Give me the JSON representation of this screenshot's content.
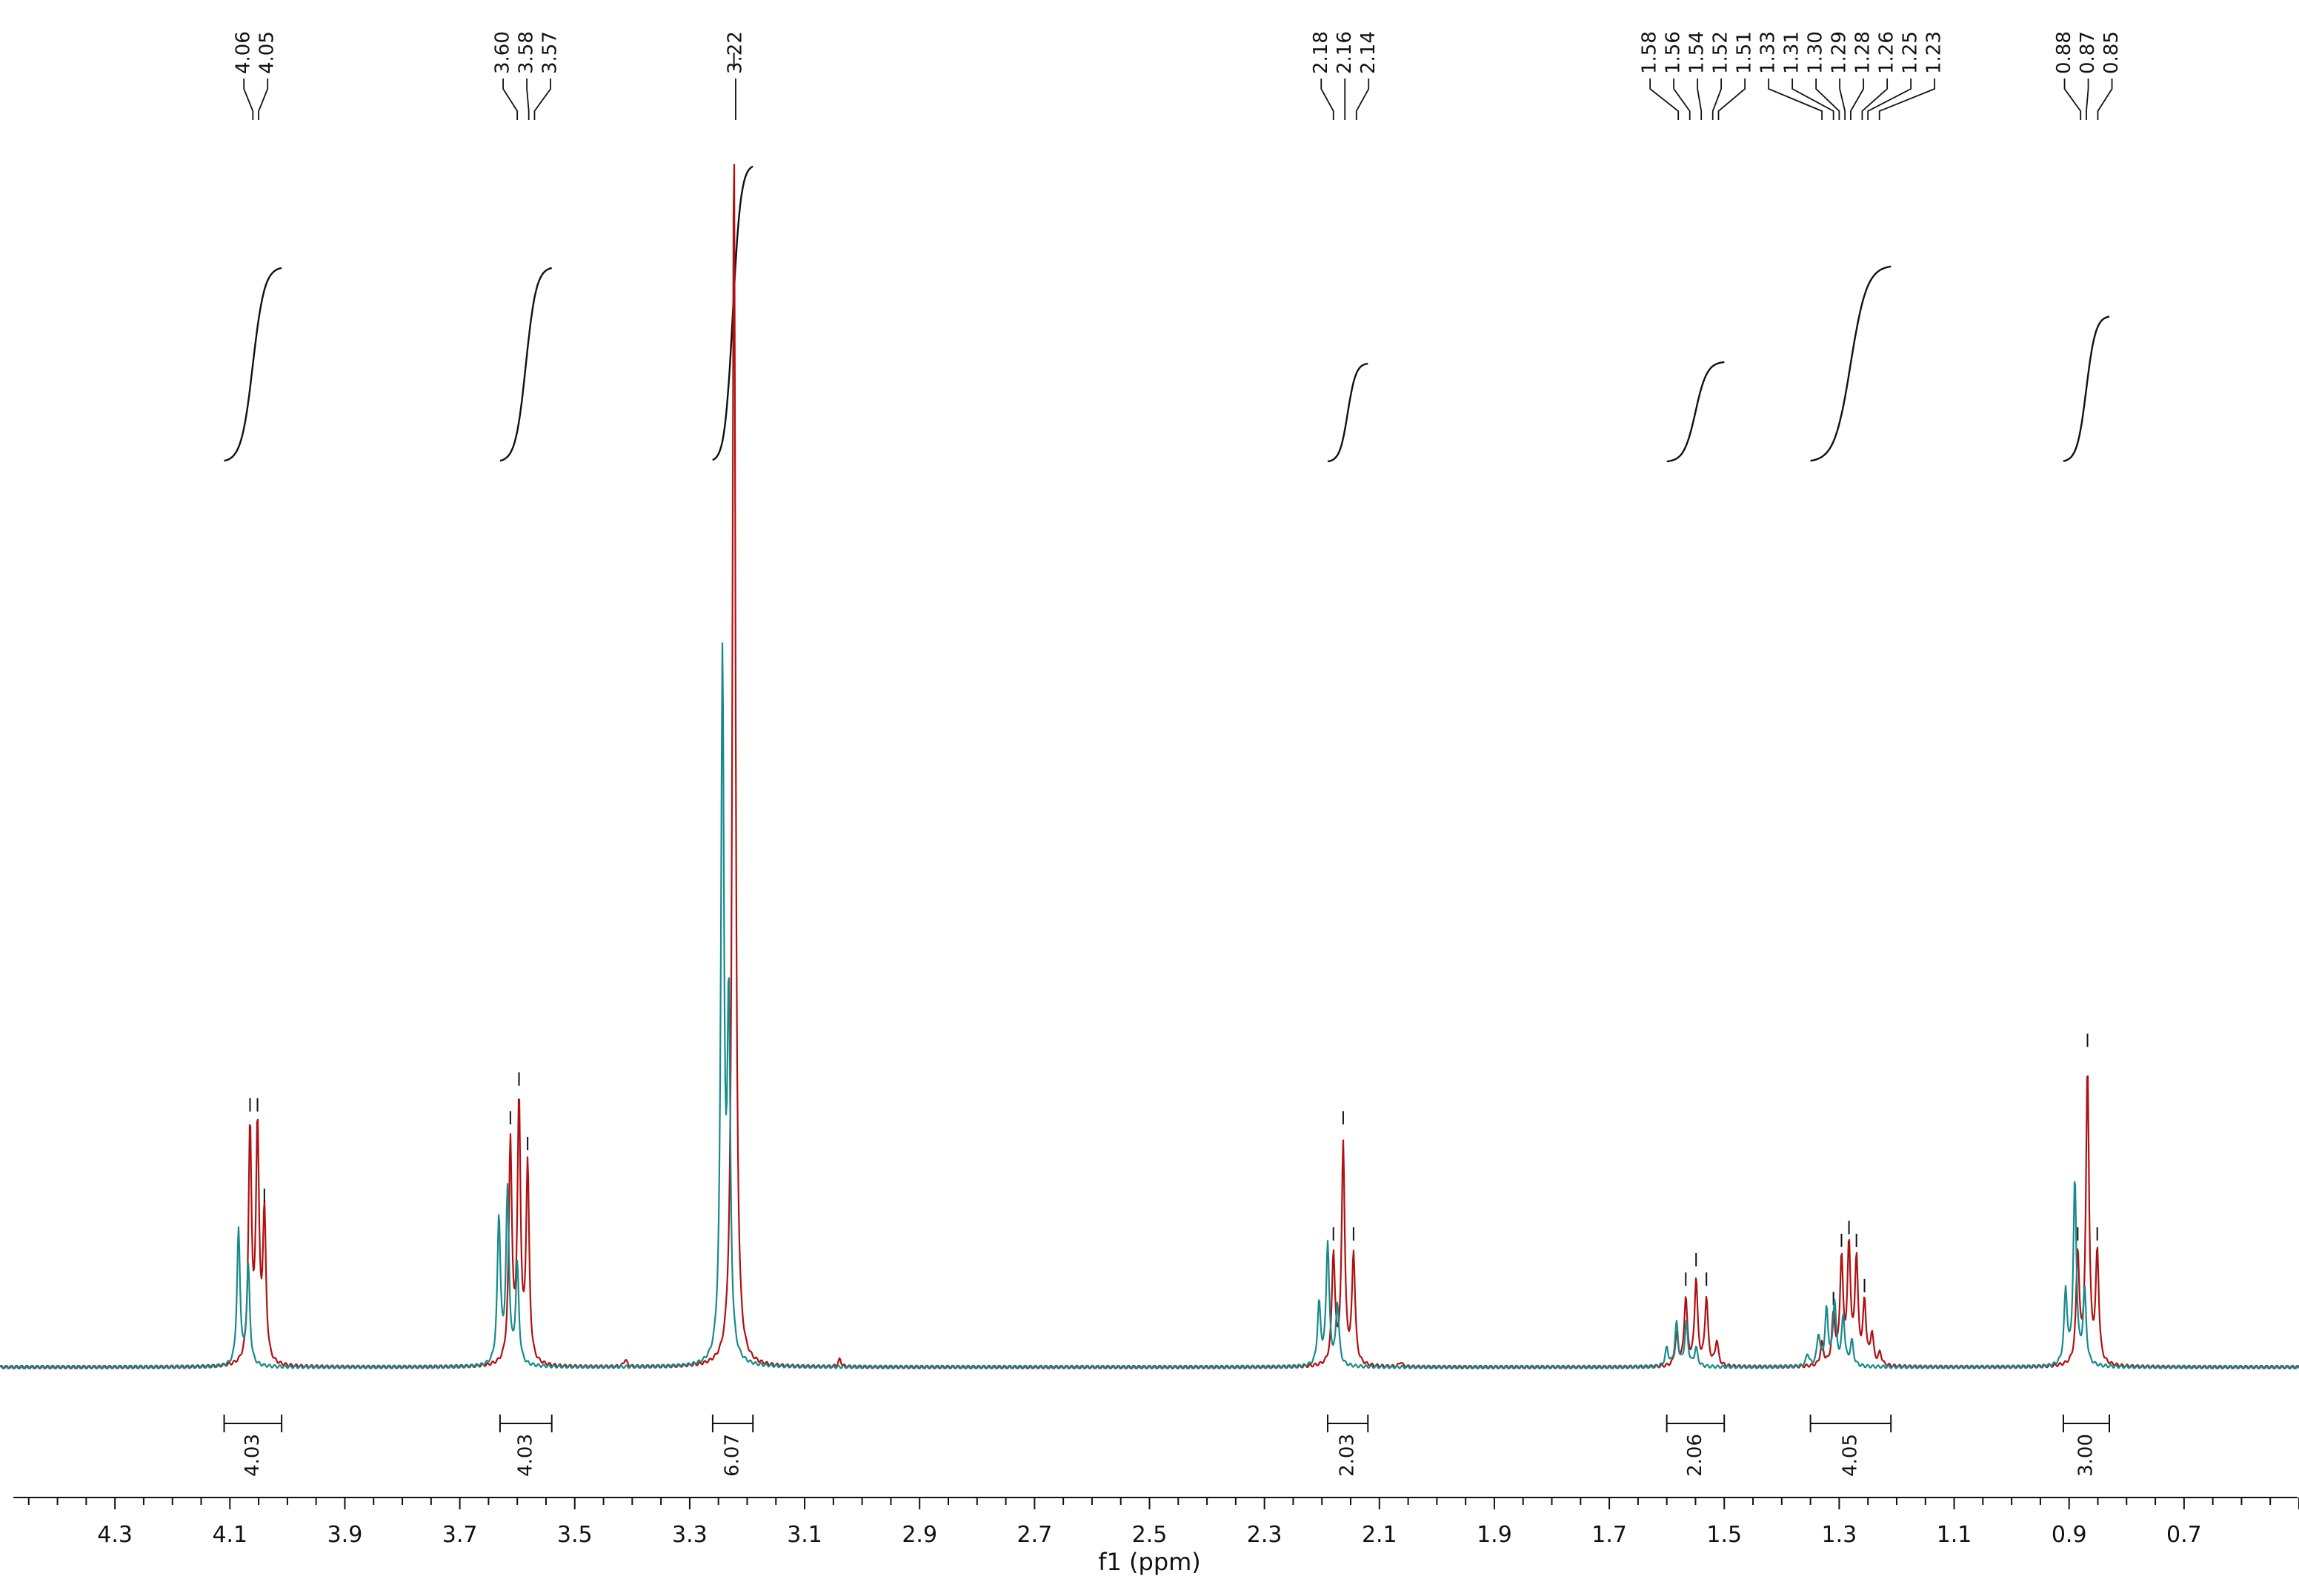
{
  "chart_data": {
    "type": "line",
    "xlabel": "f1 (ppm)",
    "xlim": [
      4.5,
      0.5
    ],
    "x_ticks": [
      "4.3",
      "4.1",
      "3.9",
      "3.7",
      "3.5",
      "3.3",
      "3.1",
      "2.9",
      "2.7",
      "2.5",
      "2.3",
      "2.1",
      "1.9",
      "1.7",
      "1.5",
      "1.3",
      "1.1",
      "0.9",
      "0.7"
    ],
    "peak_labels": [
      {
        "group": "4.06-4.05",
        "labels": [
          "4.06",
          "4.05"
        ]
      },
      {
        "group": "3.60-3.57",
        "labels": [
          "3.60",
          "3.58",
          "3.57"
        ]
      },
      {
        "group": "3.22",
        "labels": [
          "3.22"
        ]
      },
      {
        "group": "2.18-2.14",
        "labels": [
          "2.18",
          "2.16",
          "2.14"
        ]
      },
      {
        "group": "1.58-1.23",
        "labels": [
          "1.58",
          "1.56",
          "1.54",
          "1.52",
          "1.51",
          "1.33",
          "1.31",
          "1.30",
          "1.29",
          "1.28",
          "1.26",
          "1.25",
          "1.23"
        ]
      },
      {
        "group": "0.88-0.85",
        "labels": [
          "0.88",
          "0.87",
          "0.85"
        ]
      }
    ],
    "integrals": [
      {
        "from": 4.11,
        "to": 4.01,
        "value": "4.03"
      },
      {
        "from": 3.63,
        "to": 3.54,
        "value": "4.03"
      },
      {
        "from": 3.26,
        "to": 3.19,
        "value": "6.07"
      },
      {
        "from": 2.19,
        "to": 2.12,
        "value": "2.03"
      },
      {
        "from": 1.6,
        "to": 1.5,
        "value": "2.06"
      },
      {
        "from": 1.35,
        "to": 1.21,
        "value": "4.05"
      },
      {
        "from": 0.91,
        "to": 0.83,
        "value": "3.00"
      }
    ],
    "series": [
      {
        "color": "#b01010",
        "peaks": [
          {
            "x": 4.065,
            "h": 0.19
          },
          {
            "x": 4.052,
            "h": 0.19
          },
          {
            "x": 4.04,
            "h": 0.12
          },
          {
            "x": 3.612,
            "h": 0.18
          },
          {
            "x": 3.597,
            "h": 0.21
          },
          {
            "x": 3.582,
            "h": 0.16
          },
          {
            "x": 3.412,
            "h": 0.006
          },
          {
            "x": 3.223,
            "h": 1.0
          },
          {
            "x": 3.039,
            "h": 0.006
          },
          {
            "x": 2.18,
            "h": 0.09
          },
          {
            "x": 2.163,
            "h": 0.18
          },
          {
            "x": 2.145,
            "h": 0.09
          },
          {
            "x": 2.063,
            "h": 0.004
          },
          {
            "x": 1.583,
            "h": 0.025
          },
          {
            "x": 1.567,
            "h": 0.055
          },
          {
            "x": 1.549,
            "h": 0.07
          },
          {
            "x": 1.531,
            "h": 0.055
          },
          {
            "x": 1.513,
            "h": 0.02
          },
          {
            "x": 1.33,
            "h": 0.018
          },
          {
            "x": 1.31,
            "h": 0.04
          },
          {
            "x": 1.296,
            "h": 0.085
          },
          {
            "x": 1.283,
            "h": 0.095
          },
          {
            "x": 1.27,
            "h": 0.085
          },
          {
            "x": 1.256,
            "h": 0.05
          },
          {
            "x": 1.243,
            "h": 0.025
          },
          {
            "x": 1.229,
            "h": 0.01
          },
          {
            "x": 0.885,
            "h": 0.09
          },
          {
            "x": 0.868,
            "h": 0.24
          },
          {
            "x": 0.851,
            "h": 0.09
          }
        ]
      },
      {
        "color": "#188a8c",
        "peaks": [
          {
            "x": 4.085,
            "h": 0.11
          },
          {
            "x": 4.068,
            "h": 0.08
          },
          {
            "x": 3.632,
            "h": 0.12
          },
          {
            "x": 3.617,
            "h": 0.14
          },
          {
            "x": 3.6,
            "h": 0.08
          },
          {
            "x": 3.243,
            "h": 0.57
          },
          {
            "x": 3.232,
            "h": 0.28
          },
          {
            "x": 2.205,
            "h": 0.05
          },
          {
            "x": 2.19,
            "h": 0.1
          },
          {
            "x": 2.173,
            "h": 0.05
          },
          {
            "x": 1.6,
            "h": 0.015
          },
          {
            "x": 1.583,
            "h": 0.035
          },
          {
            "x": 1.566,
            "h": 0.035
          },
          {
            "x": 1.549,
            "h": 0.015
          },
          {
            "x": 1.355,
            "h": 0.01
          },
          {
            "x": 1.336,
            "h": 0.025
          },
          {
            "x": 1.322,
            "h": 0.045
          },
          {
            "x": 1.308,
            "h": 0.052
          },
          {
            "x": 1.293,
            "h": 0.04
          },
          {
            "x": 1.278,
            "h": 0.02
          },
          {
            "x": 0.906,
            "h": 0.06
          },
          {
            "x": 0.89,
            "h": 0.15
          },
          {
            "x": 0.873,
            "h": 0.06
          }
        ]
      }
    ]
  }
}
